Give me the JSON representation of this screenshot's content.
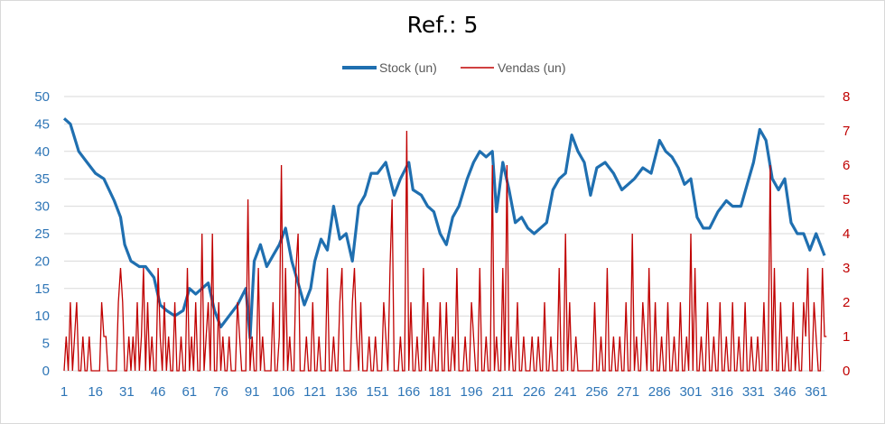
{
  "chart_data": {
    "type": "line",
    "title": "Ref.: 5",
    "x_start": 1,
    "x_end": 365,
    "x_ticks": [
      1,
      16,
      31,
      46,
      61,
      76,
      91,
      106,
      121,
      136,
      151,
      166,
      181,
      196,
      211,
      226,
      241,
      256,
      271,
      286,
      301,
      316,
      331,
      346,
      361
    ],
    "left_axis": {
      "min": 0,
      "max": 50,
      "ticks": [
        0,
        5,
        10,
        15,
        20,
        25,
        30,
        35,
        40,
        45,
        50
      ]
    },
    "right_axis": {
      "min": 0,
      "max": 8,
      "ticks": [
        0,
        1,
        2,
        3,
        4,
        5,
        6,
        7,
        8
      ]
    },
    "grid": true,
    "legend_position": "top",
    "series": [
      {
        "name": "Stock (un)",
        "axis": "left",
        "color": "#1f6fb0",
        "points": [
          [
            1,
            46
          ],
          [
            4,
            45
          ],
          [
            8,
            40
          ],
          [
            12,
            38
          ],
          [
            16,
            36
          ],
          [
            20,
            35
          ],
          [
            25,
            31
          ],
          [
            28,
            28
          ],
          [
            30,
            23
          ],
          [
            33,
            20
          ],
          [
            37,
            19
          ],
          [
            40,
            19
          ],
          [
            44,
            17
          ],
          [
            47,
            12
          ],
          [
            50,
            11
          ],
          [
            54,
            10
          ],
          [
            58,
            11
          ],
          [
            61,
            15
          ],
          [
            64,
            14
          ],
          [
            67,
            15
          ],
          [
            70,
            16
          ],
          [
            73,
            11
          ],
          [
            76,
            8
          ],
          [
            80,
            10
          ],
          [
            84,
            12
          ],
          [
            88,
            15
          ],
          [
            90,
            6
          ],
          [
            92,
            20
          ],
          [
            95,
            23
          ],
          [
            98,
            19
          ],
          [
            101,
            21
          ],
          [
            104,
            23
          ],
          [
            107,
            26
          ],
          [
            110,
            20
          ],
          [
            113,
            16
          ],
          [
            116,
            12
          ],
          [
            119,
            15
          ],
          [
            121,
            20
          ],
          [
            124,
            24
          ],
          [
            127,
            22
          ],
          [
            130,
            30
          ],
          [
            133,
            24
          ],
          [
            136,
            25
          ],
          [
            139,
            20
          ],
          [
            142,
            30
          ],
          [
            145,
            32
          ],
          [
            148,
            36
          ],
          [
            151,
            36
          ],
          [
            155,
            38
          ],
          [
            159,
            32
          ],
          [
            162,
            35
          ],
          [
            166,
            38
          ],
          [
            168,
            33
          ],
          [
            172,
            32
          ],
          [
            175,
            30
          ],
          [
            178,
            29
          ],
          [
            181,
            25
          ],
          [
            184,
            23
          ],
          [
            187,
            28
          ],
          [
            190,
            30
          ],
          [
            194,
            35
          ],
          [
            197,
            38
          ],
          [
            200,
            40
          ],
          [
            203,
            39
          ],
          [
            206,
            40
          ],
          [
            208,
            29
          ],
          [
            211,
            38
          ],
          [
            214,
            33
          ],
          [
            217,
            27
          ],
          [
            220,
            28
          ],
          [
            223,
            26
          ],
          [
            226,
            25
          ],
          [
            229,
            26
          ],
          [
            232,
            27
          ],
          [
            235,
            33
          ],
          [
            238,
            35
          ],
          [
            241,
            36
          ],
          [
            244,
            43
          ],
          [
            247,
            40
          ],
          [
            250,
            38
          ],
          [
            253,
            32
          ],
          [
            256,
            37
          ],
          [
            260,
            38
          ],
          [
            264,
            36
          ],
          [
            268,
            33
          ],
          [
            271,
            34
          ],
          [
            274,
            35
          ],
          [
            278,
            37
          ],
          [
            282,
            36
          ],
          [
            286,
            42
          ],
          [
            289,
            40
          ],
          [
            292,
            39
          ],
          [
            295,
            37
          ],
          [
            298,
            34
          ],
          [
            301,
            35
          ],
          [
            304,
            28
          ],
          [
            307,
            26
          ],
          [
            310,
            26
          ],
          [
            314,
            29
          ],
          [
            318,
            31
          ],
          [
            321,
            30
          ],
          [
            325,
            30
          ],
          [
            328,
            34
          ],
          [
            331,
            38
          ],
          [
            334,
            44
          ],
          [
            337,
            42
          ],
          [
            340,
            35
          ],
          [
            343,
            33
          ],
          [
            346,
            35
          ],
          [
            349,
            27
          ],
          [
            352,
            25
          ],
          [
            355,
            25
          ],
          [
            358,
            22
          ],
          [
            361,
            25
          ],
          [
            363,
            23
          ],
          [
            365,
            21
          ]
        ]
      },
      {
        "name": "Vendas (un)",
        "axis": "right",
        "color": "#c00000",
        "values": [
          0,
          1,
          0,
          2,
          0,
          1,
          2,
          0,
          0,
          1,
          0,
          0,
          1,
          0,
          0,
          0,
          0,
          0,
          2,
          1,
          1,
          0,
          0,
          0,
          0,
          0,
          2,
          3,
          2,
          0,
          0,
          1,
          0,
          1,
          0,
          2,
          0,
          1,
          3,
          0,
          2,
          0,
          1,
          0,
          0,
          3,
          1,
          0,
          2,
          0,
          1,
          0,
          0,
          2,
          0,
          0,
          1,
          0,
          0,
          3,
          0,
          1,
          0,
          2,
          0,
          0,
          4,
          0,
          1,
          2,
          0,
          4,
          0,
          0,
          2,
          0,
          1,
          0,
          0,
          1,
          0,
          0,
          0,
          2,
          1,
          0,
          0,
          0,
          5,
          0,
          1,
          0,
          0,
          3,
          0,
          1,
          0,
          0,
          0,
          0,
          2,
          0,
          0,
          1,
          6,
          0,
          3,
          0,
          1,
          0,
          0,
          3,
          4,
          0,
          0,
          0,
          1,
          0,
          0,
          2,
          0,
          0,
          1,
          0,
          0,
          0,
          3,
          0,
          0,
          1,
          0,
          0,
          2,
          3,
          0,
          0,
          0,
          0,
          2,
          3,
          1,
          0,
          2,
          0,
          0,
          0,
          1,
          0,
          0,
          1,
          0,
          0,
          0,
          2,
          1,
          0,
          3,
          5,
          0,
          0,
          0,
          1,
          0,
          0,
          7,
          0,
          2,
          0,
          0,
          1,
          0,
          0,
          3,
          0,
          2,
          0,
          0,
          1,
          0,
          0,
          2,
          0,
          0,
          2,
          0,
          0,
          1,
          0,
          3,
          0,
          0,
          0,
          1,
          0,
          0,
          2,
          1,
          0,
          0,
          3,
          0,
          0,
          1,
          0,
          0,
          6,
          0,
          1,
          0,
          0,
          3,
          0,
          6,
          0,
          1,
          0,
          0,
          2,
          0,
          0,
          1,
          0,
          0,
          0,
          1,
          0,
          0,
          1,
          0,
          0,
          2,
          0,
          0,
          1,
          0,
          0,
          0,
          3,
          0,
          0,
          4,
          0,
          2,
          0,
          0,
          1,
          0,
          0,
          0,
          0,
          0,
          0,
          0,
          0,
          2,
          0,
          0,
          1,
          0,
          0,
          3,
          0,
          0,
          1,
          0,
          0,
          1,
          0,
          0,
          2,
          0,
          0,
          4,
          0,
          1,
          0,
          0,
          2,
          1,
          0,
          3,
          0,
          0,
          2,
          0,
          0,
          1,
          0,
          0,
          2,
          0,
          0,
          1,
          0,
          0,
          2,
          0,
          0,
          1,
          0,
          4,
          0,
          3,
          0,
          0,
          1,
          0,
          0,
          2,
          0,
          0,
          1,
          0,
          0,
          2,
          0,
          0,
          1,
          0,
          0,
          2,
          0,
          0,
          1,
          0,
          0,
          2,
          0,
          0,
          1,
          0,
          0,
          1,
          0,
          0,
          2,
          0,
          0,
          6,
          0,
          3,
          0,
          0,
          2,
          0,
          0,
          1,
          0,
          0,
          2,
          0,
          1,
          0,
          0,
          2,
          1,
          3,
          0,
          0,
          2,
          1,
          0,
          0,
          3,
          1,
          1
        ]
      }
    ]
  }
}
